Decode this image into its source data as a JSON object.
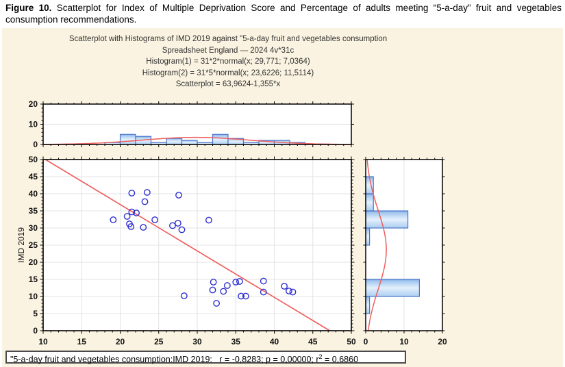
{
  "caption": {
    "label": "Figure 10.",
    "text": " Scatterplot for Index of Multiple Deprivation Score and Percentage of adults meeting “5-a-day” fruit and vegetables consumption recommendations."
  },
  "chart_data": {
    "type": "scatter",
    "title_lines": [
      "Scatterplot with Histograms of IMD 2019 against \"5-a-day fruit and vegetables consumption",
      "Spreadsheet England — 2024 4v*31c",
      "Histogram(1) = 31*2*normal(x; 29,771; 7,0364)",
      "Histogram(2) = 31*5*normal(x; 23,6226; 11,5114)",
      "Scatterplot = 63,9624-1,355*x"
    ],
    "xlabel": "",
    "ylabel": "IMD 2019",
    "x_range": [
      10,
      50
    ],
    "y_range": [
      0,
      50
    ],
    "x_ticks": [
      10,
      15,
      20,
      25,
      30,
      35,
      40,
      45,
      50
    ],
    "y_ticks": [
      0,
      5,
      10,
      15,
      20,
      25,
      30,
      35,
      40,
      45,
      50
    ],
    "grid": true,
    "points": [
      [
        19.1,
        32.4
      ],
      [
        20.9,
        33.4
      ],
      [
        21.5,
        34.7
      ],
      [
        22.1,
        34.4
      ],
      [
        21.2,
        31.2
      ],
      [
        21.4,
        30.4
      ],
      [
        21.5,
        40.2
      ],
      [
        23.5,
        40.4
      ],
      [
        23.2,
        37.7
      ],
      [
        23.0,
        30.2
      ],
      [
        24.5,
        32.4
      ],
      [
        26.8,
        30.7
      ],
      [
        27.5,
        31.4
      ],
      [
        28.0,
        29.5
      ],
      [
        27.6,
        39.6
      ],
      [
        31.5,
        32.3
      ],
      [
        28.3,
        10.2
      ],
      [
        32.1,
        14.2
      ],
      [
        32.0,
        11.9
      ],
      [
        32.5,
        8.0
      ],
      [
        33.4,
        11.5
      ],
      [
        33.9,
        13.2
      ],
      [
        35.0,
        14.2
      ],
      [
        35.5,
        14.4
      ],
      [
        35.7,
        10.1
      ],
      [
        36.3,
        10.1
      ],
      [
        38.6,
        14.5
      ],
      [
        38.6,
        11.3
      ],
      [
        41.3,
        13.0
      ],
      [
        41.9,
        11.6
      ],
      [
        42.4,
        11.3
      ]
    ],
    "regression_line": {
      "intercept": 63.9624,
      "slope": -1.355,
      "equation": "y = 63,9624 - 1,355*x"
    },
    "top_histogram": {
      "variable": "5-a-day fruit and vegetables consumption",
      "bin_width": 2,
      "bins": [
        [
          18,
          1
        ],
        [
          20,
          5
        ],
        [
          22,
          4
        ],
        [
          24,
          1
        ],
        [
          26,
          3
        ],
        [
          28,
          2
        ],
        [
          30,
          1
        ],
        [
          32,
          5
        ],
        [
          34,
          3
        ],
        [
          36,
          1
        ],
        [
          38,
          2
        ],
        [
          40,
          2
        ],
        [
          42,
          1
        ]
      ],
      "count_axis_ticks": [
        0,
        10,
        20
      ],
      "count_axis_max": 20,
      "normal_curve": {
        "n": 31,
        "bin_width": 2,
        "mean": 29.771,
        "sd": 7.0364
      }
    },
    "right_histogram": {
      "variable": "IMD 2019",
      "bin_width": 5,
      "bins": [
        [
          5,
          1
        ],
        [
          10,
          14
        ],
        [
          25,
          1
        ],
        [
          30,
          11
        ],
        [
          35,
          2
        ],
        [
          40,
          2
        ]
      ],
      "count_axis_ticks": [
        0,
        10,
        20
      ],
      "count_axis_max": 20,
      "normal_curve": {
        "n": 31,
        "bin_width": 5,
        "mean": 23.6226,
        "sd": 11.5114
      }
    }
  },
  "status_bar": {
    "text_before_sup": "\"5-a-day fruit and vegetables consumption:IMD 2019:   r = -0,8283; p = 0,00000; r",
    "sup": "2",
    "text_after_sup": " = 0,6860"
  },
  "colors": {
    "panel_bg": "#faf3e1",
    "plot_bg": "#ffffff",
    "grid": "#e3e3e3",
    "axis": "#000000",
    "bar_border": "#4a74c8",
    "bar_grad": [
      "#7fade6",
      "#a6c9f0",
      "#e4f0fc",
      "#abcdf1"
    ],
    "point_stroke": "#2d2dd2",
    "red_line": "#ef5e5e",
    "tick_text": "#111111",
    "title_text": "#333333",
    "status_border": "#4a4a4a"
  }
}
